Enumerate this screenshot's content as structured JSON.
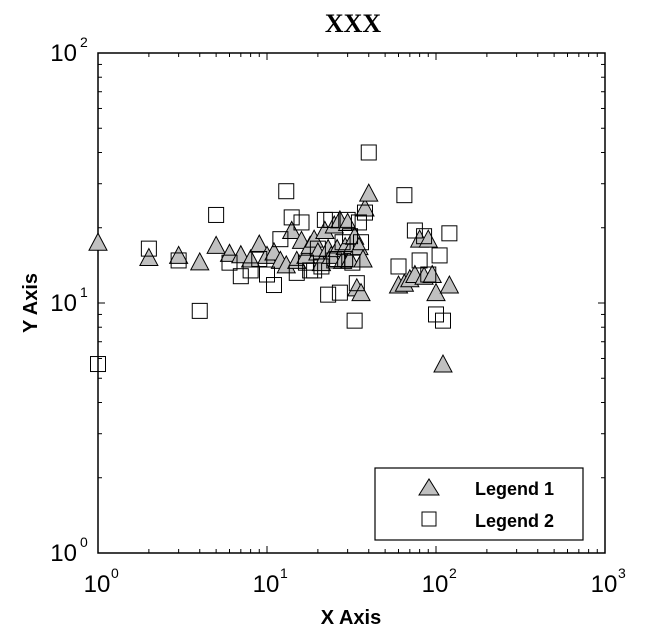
{
  "chart_data": {
    "type": "scatter",
    "title": "XXX",
    "xlabel": "X Axis",
    "ylabel": "Y Axis",
    "xscale": "log",
    "yscale": "log",
    "xlim": [
      1,
      1000
    ],
    "ylim": [
      1,
      100
    ],
    "grid": false,
    "legend_position": "lower right",
    "x_tick_labels": [
      {
        "base": "10",
        "exp": "0",
        "value": 1
      },
      {
        "base": "10",
        "exp": "1",
        "value": 10
      },
      {
        "base": "10",
        "exp": "2",
        "value": 100
      },
      {
        "base": "10",
        "exp": "3",
        "value": 1000
      }
    ],
    "y_tick_labels": [
      {
        "base": "10",
        "exp": "0",
        "value": 1
      },
      {
        "base": "10",
        "exp": "1",
        "value": 10
      },
      {
        "base": "10",
        "exp": "2",
        "value": 100
      }
    ],
    "series": [
      {
        "name": "Legend 1",
        "marker": "triangle",
        "color": "#c0c0c0",
        "edge_color": "#000000",
        "points": [
          [
            1.0,
            17.5
          ],
          [
            2.0,
            15.2
          ],
          [
            3.0,
            15.5
          ],
          [
            4.0,
            14.6
          ],
          [
            5.0,
            17.0
          ],
          [
            6.0,
            15.8
          ],
          [
            7.0,
            15.6
          ],
          [
            8.0,
            15.0
          ],
          [
            9.0,
            17.2
          ],
          [
            10.0,
            15.5
          ],
          [
            11.0,
            16.0
          ],
          [
            12.0,
            14.8
          ],
          [
            13.0,
            14.2
          ],
          [
            14.0,
            19.5
          ],
          [
            15.0,
            14.8
          ],
          [
            16.0,
            17.8
          ],
          [
            17.0,
            15.5
          ],
          [
            18.0,
            17.0
          ],
          [
            19.0,
            18.0
          ],
          [
            20.0,
            16.0
          ],
          [
            21.0,
            14.5
          ],
          [
            22.0,
            19.5
          ],
          [
            23.0,
            16.5
          ],
          [
            24.0,
            15.5
          ],
          [
            25.0,
            20.5
          ],
          [
            26.0,
            16.5
          ],
          [
            27.0,
            21.5
          ],
          [
            28.0,
            14.8
          ],
          [
            29.0,
            16.8
          ],
          [
            30.0,
            21.0
          ],
          [
            31.0,
            15.0
          ],
          [
            32.0,
            17.0
          ],
          [
            33.0,
            18.5
          ],
          [
            34.0,
            11.5
          ],
          [
            35.0,
            16.8
          ],
          [
            36.0,
            11.0
          ],
          [
            37.0,
            15.0
          ],
          [
            38.0,
            24.0
          ],
          [
            40.0,
            27.5
          ],
          [
            60.0,
            11.8
          ],
          [
            65.0,
            12.0
          ],
          [
            70.0,
            12.5
          ],
          [
            75.0,
            13.0
          ],
          [
            80.0,
            18.0
          ],
          [
            85.0,
            12.8
          ],
          [
            90.0,
            18.0
          ],
          [
            95.0,
            13.0
          ],
          [
            100.0,
            11.0
          ],
          [
            110.0,
            5.7
          ],
          [
            120.0,
            11.8
          ]
        ]
      },
      {
        "name": "Legend 2",
        "marker": "square",
        "color": "#ffffff",
        "edge_color": "#000000",
        "points": [
          [
            1.0,
            5.7
          ],
          [
            2.0,
            16.5
          ],
          [
            3.0,
            14.8
          ],
          [
            4.0,
            9.3
          ],
          [
            5.0,
            22.5
          ],
          [
            6.0,
            14.5
          ],
          [
            7.0,
            12.8
          ],
          [
            8.0,
            13.5
          ],
          [
            9.0,
            15.0
          ],
          [
            10.0,
            13.0
          ],
          [
            11.0,
            11.8
          ],
          [
            12.0,
            18.0
          ],
          [
            13.0,
            28.0
          ],
          [
            14.0,
            22.0
          ],
          [
            15.0,
            13.2
          ],
          [
            16.0,
            21.0
          ],
          [
            17.0,
            14.5
          ],
          [
            18.0,
            13.5
          ],
          [
            19.0,
            13.5
          ],
          [
            20.0,
            16.5
          ],
          [
            21.0,
            14.0
          ],
          [
            22.0,
            21.5
          ],
          [
            23.0,
            10.8
          ],
          [
            24.0,
            21.5
          ],
          [
            25.0,
            14.8
          ],
          [
            26.0,
            15.0
          ],
          [
            27.0,
            11.0
          ],
          [
            28.0,
            17.5
          ],
          [
            29.0,
            15.0
          ],
          [
            30.0,
            21.5
          ],
          [
            31.0,
            18.5
          ],
          [
            32.0,
            14.5
          ],
          [
            33.0,
            8.5
          ],
          [
            34.0,
            12.0
          ],
          [
            35.0,
            21.0
          ],
          [
            36.0,
            17.5
          ],
          [
            38.0,
            23.0
          ],
          [
            40.0,
            40.0
          ],
          [
            60.0,
            14.0
          ],
          [
            65.0,
            27.0
          ],
          [
            75.0,
            19.5
          ],
          [
            80.0,
            14.8
          ],
          [
            85.0,
            18.5
          ],
          [
            90.0,
            13.0
          ],
          [
            100.0,
            9.0
          ],
          [
            105.0,
            15.5
          ],
          [
            110.0,
            8.5
          ],
          [
            120.0,
            19.0
          ]
        ]
      }
    ]
  },
  "legend": {
    "items": [
      {
        "label": "Legend 1",
        "marker": "triangle"
      },
      {
        "label": "Legend 2",
        "marker": "square"
      }
    ]
  }
}
